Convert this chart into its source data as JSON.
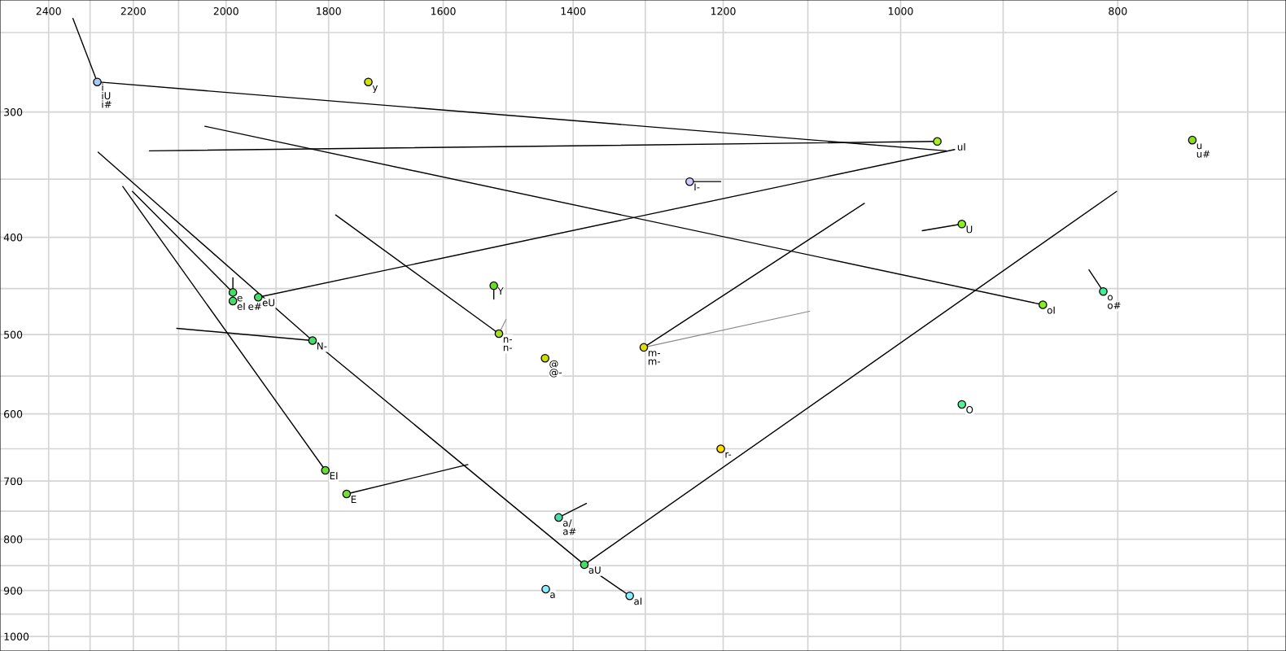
{
  "chart_data": {
    "type": "scatter",
    "log": "xy",
    "grid": true,
    "xlim": [
      2523,
      673
    ],
    "ylim": [
      1034,
      232
    ],
    "xticks": [
      2400,
      {
        "value": 2300,
        "label": null
      },
      2200,
      {
        "value": 2100,
        "label": null
      },
      2000,
      {
        "value": 1900,
        "label": null
      },
      1800,
      {
        "value": 1700,
        "label": null
      },
      1600,
      {
        "value": 1500,
        "label": null
      },
      1400,
      {
        "value": 1300,
        "label": null
      },
      1200,
      {
        "value": 1100,
        "label": null
      },
      1000,
      {
        "value": 900,
        "label": null
      },
      800,
      {
        "value": 700,
        "label": null
      }
    ],
    "yticks": [
      {
        "value": 250,
        "label": null
      },
      300,
      {
        "value": 350,
        "label": null
      },
      400,
      {
        "value": 450,
        "label": null
      },
      500,
      {
        "value": 550,
        "label": null
      },
      600,
      {
        "value": 650,
        "label": null
      },
      700,
      {
        "value": 750,
        "label": null
      },
      800,
      {
        "value": 850,
        "label": null
      },
      900,
      {
        "value": 950,
        "label": null
      },
      1000
    ],
    "series": [
      {
        "type": "line",
        "color": "#000000",
        "x": [
          2341,
          2283,
          954
        ],
        "values": [
          242,
          280,
          328
        ]
      },
      {
        "type": "line",
        "color": "#000000",
        "x": [
          2164,
          963
        ],
        "values": [
          328,
          321
        ]
      },
      {
        "type": "line",
        "color": "#000000",
        "x": [
          1935,
          946
        ],
        "values": [
          459,
          327
        ]
      },
      {
        "type": "line",
        "color": "#000000",
        "x": [
          2044,
          864
        ],
        "values": [
          310,
          467
        ]
      },
      {
        "type": "line",
        "color": "#000000",
        "x": [
          2281,
          1830,
          1384,
          1321
        ],
        "values": [
          329,
          507,
          848,
          911
        ]
      },
      {
        "type": "line",
        "color": "#000000",
        "x": [
          2224,
          1806
        ],
        "values": [
          356,
          683
        ]
      },
      {
        "type": "line",
        "color": "#000000",
        "x": [
          2202,
          1986
        ],
        "values": [
          360,
          454
        ]
      },
      {
        "type": "line",
        "color": "#000000",
        "x": [
          1986,
          1986
        ],
        "values": [
          439,
          454
        ]
      },
      {
        "type": "line",
        "color": "#000000",
        "x": [
          2104,
          1830
        ],
        "values": [
          493,
          507
        ]
      },
      {
        "type": "line",
        "color": "#000000",
        "x": [
          1787,
          1511
        ],
        "values": [
          380,
          499
        ]
      },
      {
        "type": "line",
        "color": "#888888",
        "x": [
          1511,
          1500
        ],
        "values": [
          499,
          483
        ]
      },
      {
        "type": "line",
        "color": "#000000",
        "x": [
          1302,
          1038
        ],
        "values": [
          515,
          370
        ]
      },
      {
        "type": "line",
        "color": "#888888",
        "x": [
          1302,
          1098
        ],
        "values": [
          515,
          474
        ]
      },
      {
        "type": "line",
        "color": "#000000",
        "x": [
          1767,
          1560
        ],
        "values": [
          721,
          674
        ]
      },
      {
        "type": "line",
        "color": "#000000",
        "x": [
          1421,
          1381
        ],
        "values": [
          761,
          737
        ]
      },
      {
        "type": "line",
        "color": "#000000",
        "x": [
          1384,
          801
        ],
        "values": [
          848,
          360
        ]
      },
      {
        "type": "line",
        "color": "#000000",
        "x": [
          1242,
          1203
        ],
        "values": [
          352,
          352
        ]
      },
      {
        "type": "line",
        "color": "#000000",
        "x": [
          978,
          939
        ],
        "values": [
          394,
          388
        ]
      },
      {
        "type": "line",
        "color": "#000000",
        "x": [
          824,
          812
        ],
        "values": [
          431,
          453
        ]
      },
      {
        "type": "line",
        "color": "#000000",
        "x": [
          1519,
          1519
        ],
        "values": [
          447,
          461
        ]
      },
      {
        "type": "scatter",
        "marker": "circle",
        "x": [
          2283,
          1728,
          1986,
          1986,
          1935,
          1519,
          1242,
          963,
          741,
          939,
          864,
          812,
          1830,
          1806,
          1767,
          1511,
          1441,
          1302,
          1203,
          1421,
          1384,
          1440,
          1321,
          939
        ],
        "values": [
          280,
          280,
          454,
          463,
          459,
          447,
          352,
          321,
          320,
          388,
          467,
          453,
          507,
          683,
          721,
          499,
          528,
          515,
          650,
          761,
          848,
          897,
          911,
          587
        ],
        "colors": [
          "#a8c8f0",
          "#d4e000",
          "#44dd66",
          "#44dd66",
          "#44dd66",
          "#66dd22",
          "#ccccff",
          "#aaee22",
          "#88dd22",
          "#88ee22",
          "#88ee22",
          "#44ee99",
          "#44dd66",
          "#66dd33",
          "#77dd33",
          "#aadd22",
          "#ccdd00",
          "#dddd00",
          "#ffdd00",
          "#44ddaa",
          "#44dd66",
          "#88eeff",
          "#88eeff",
          "#55ee99"
        ]
      }
    ],
    "annotations": [
      {
        "text": "i",
        "x": 2283,
        "y": 280
      },
      {
        "text": "iU",
        "x": 2283,
        "y": 280
      },
      {
        "text": "i#",
        "x": 2283,
        "y": 280
      },
      {
        "text": "y",
        "x": 1728,
        "y": 280
      },
      {
        "text": "e",
        "x": 1986,
        "y": 454
      },
      {
        "text": "eI",
        "x": 1986,
        "y": 454
      },
      {
        "text": "e#",
        "x": 1986,
        "y": 463
      },
      {
        "text": "eU",
        "x": 1935,
        "y": 459
      },
      {
        "text": "Y",
        "x": 1519,
        "y": 447
      },
      {
        "text": "I-",
        "x": 1242,
        "y": 352
      },
      {
        "text": "uI",
        "x": 963,
        "y": 321
      },
      {
        "text": "u",
        "x": 741,
        "y": 320
      },
      {
        "text": "u#",
        "x": 741,
        "y": 320
      },
      {
        "text": "U",
        "x": 939,
        "y": 388
      },
      {
        "text": "oI",
        "x": 864,
        "y": 467
      },
      {
        "text": "o",
        "x": 812,
        "y": 453
      },
      {
        "text": "o#",
        "x": 812,
        "y": 453
      },
      {
        "text": "N-",
        "x": 1830,
        "y": 507
      },
      {
        "text": "EI",
        "x": 1806,
        "y": 683
      },
      {
        "text": "E",
        "x": 1767,
        "y": 721
      },
      {
        "text": "n-",
        "x": 1511,
        "y": 499
      },
      {
        "text": "n-",
        "x": 1511,
        "y": 499
      },
      {
        "text": "@",
        "x": 1441,
        "y": 528
      },
      {
        "text": "@-",
        "x": 1441,
        "y": 528
      },
      {
        "text": "m-",
        "x": 1302,
        "y": 515
      },
      {
        "text": "m-",
        "x": 1302,
        "y": 515
      },
      {
        "text": "r-",
        "x": 1203,
        "y": 650
      },
      {
        "text": "a/",
        "x": 1421,
        "y": 761
      },
      {
        "text": "a#",
        "x": 1421,
        "y": 761
      },
      {
        "text": "aU",
        "x": 1384,
        "y": 848
      },
      {
        "text": "a",
        "x": 1440,
        "y": 897
      },
      {
        "text": "aI",
        "x": 1321,
        "y": 911
      },
      {
        "text": "O",
        "x": 939,
        "y": 587
      }
    ]
  }
}
